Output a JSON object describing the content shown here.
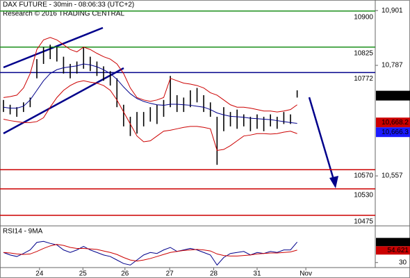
{
  "chart_data": {
    "type": "ohlc",
    "title": "DAX FUTURE - 30min - 08:06:33 (UTC+2)",
    "subtitle": "Research © 2016 TRADING CENTRAL",
    "xlim": [
      -0.52,
      55.7
    ],
    "xticks": [
      {
        "value": 5.4,
        "label": "24"
      },
      {
        "value": 11.9,
        "label": "25"
      },
      {
        "value": 18.2,
        "label": "26"
      },
      {
        "value": 24.9,
        "label": "27"
      },
      {
        "value": 31.5,
        "label": "28"
      },
      {
        "value": 38,
        "label": "31"
      },
      {
        "value": 45.3,
        "label": "Nov"
      }
    ],
    "ylim": [
      10453,
      10923
    ],
    "yticks": [
      {
        "value": 10901,
        "label": "10,901"
      },
      {
        "value": 10787,
        "label": "10,787"
      },
      {
        "value": 10557,
        "label": "10,557"
      }
    ],
    "bar_color": "#000000",
    "low": [
      10690,
      10685,
      10680,
      10690,
      10700,
      10760,
      10790,
      10800,
      10795,
      10770,
      10760,
      10770,
      10780,
      10775,
      10765,
      10755,
      10745,
      10700,
      10660,
      10640,
      10645,
      10660,
      10670,
      10665,
      10680,
      10700,
      10690,
      10690,
      10700,
      10710,
      10690,
      10680,
      10580,
      10650,
      10660,
      10655,
      10660,
      10650,
      10655,
      10650,
      10660,
      10655,
      10665,
      10665,
      10720
    ],
    "high": [
      10715,
      10705,
      10700,
      10710,
      10720,
      10800,
      10825,
      10830,
      10825,
      10805,
      10790,
      10795,
      10825,
      10805,
      10795,
      10785,
      10775,
      10760,
      10705,
      10680,
      10690,
      10690,
      10700,
      10705,
      10715,
      10765,
      10725,
      10720,
      10735,
      10740,
      10725,
      10710,
      10680,
      10700,
      10690,
      10695,
      10685,
      10680,
      10685,
      10680,
      10685,
      10680,
      10690,
      10685,
      10735
    ],
    "series": [
      {
        "name": "upper",
        "color": "#cc0000",
        "values": [
          10720,
          10722,
          10725,
          10740,
          10770,
          10820,
          10840,
          10845,
          10840,
          10830,
          10820,
          10815,
          10825,
          10820,
          10812,
          10805,
          10800,
          10790,
          10770,
          10740,
          10720,
          10715,
          10712,
          10715,
          10720,
          10760,
          10755,
          10750,
          10748,
          10745,
          10740,
          10730,
          10725,
          10715,
          10705,
          10700,
          10700,
          10698,
          10695,
          10692,
          10692,
          10690,
          10692,
          10695,
          10705
        ]
      },
      {
        "name": "ma",
        "color": "#00008b",
        "values": [
          10700,
          10698,
          10698,
          10702,
          10715,
          10735,
          10755,
          10770,
          10778,
          10782,
          10784,
          10786,
          10790,
          10788,
          10784,
          10778,
          10770,
          10758,
          10742,
          10728,
          10718,
          10712,
          10708,
          10705,
          10704,
          10706,
          10706,
          10705,
          10704,
          10702,
          10700,
          10695,
          10688,
          10684,
          10681,
          10680,
          10679,
          10677,
          10676,
          10675,
          10674,
          10672,
          10670,
          10668,
          10666.3
        ]
      },
      {
        "name": "lower",
        "color": "#cc0000",
        "values": [
          10675,
          10672,
          10670,
          10668,
          10668,
          10670,
          10678,
          10700,
          10720,
          10735,
          10745,
          10752,
          10755,
          10752,
          10750,
          10745,
          10735,
          10715,
          10690,
          10665,
          10640,
          10628,
          10630,
          10640,
          10650,
          10652,
          10655,
          10658,
          10660,
          10660,
          10658,
          10655,
          10610,
          10612,
          10620,
          10630,
          10640,
          10642,
          10645,
          10645,
          10644,
          10645,
          10648,
          10650,
          10645
        ]
      }
    ],
    "levels": [
      {
        "value": 10900,
        "color": "#1a8f1a"
      },
      {
        "value": 10825,
        "color": "#1a8f1a"
      },
      {
        "value": 10772,
        "color": "#00008b"
      },
      {
        "value": 10570,
        "color": "#cc0000"
      },
      {
        "value": 10530,
        "color": "#cc0000"
      },
      {
        "value": 10475,
        "color": "#cc0000"
      }
    ],
    "markers": [
      {
        "value": 10724,
        "label": "10,724",
        "color": "#000000"
      },
      {
        "value": 10668.2,
        "label": "10,668.2",
        "color": "#cc0000"
      },
      {
        "value": 10666.3,
        "label": "10,666.3",
        "color": "#1a1aff"
      }
    ],
    "rsi": {
      "title": "RSI14 - 9MA",
      "ylim": [
        20,
        100
      ],
      "yticks": [
        30
      ],
      "series": [
        {
          "name": "rsi",
          "color": "#00008b",
          "values": [
            50,
            45,
            42,
            48,
            55,
            70,
            72,
            68,
            65,
            55,
            50,
            55,
            62,
            55,
            50,
            45,
            42,
            35,
            28,
            25,
            35,
            45,
            50,
            48,
            55,
            60,
            52,
            55,
            58,
            55,
            50,
            45,
            25,
            40,
            48,
            50,
            52,
            45,
            50,
            48,
            52,
            50,
            55,
            55,
            70.6081
          ]
        },
        {
          "name": "ma",
          "color": "#cc0000",
          "values": [
            50,
            49,
            47,
            46,
            47,
            52,
            58,
            63,
            66,
            64,
            60,
            58,
            58,
            57,
            56,
            53,
            50,
            46,
            40,
            35,
            33,
            35,
            38,
            42,
            46,
            50,
            52,
            54,
            55,
            56,
            55,
            53,
            47,
            44,
            43,
            43,
            44,
            45,
            47,
            48,
            49,
            49,
            50,
            51,
            54.621
          ]
        }
      ],
      "markers": [
        {
          "value": 70.6081,
          "color": "#000000"
        },
        {
          "value": 54.621,
          "color": "#cc0000"
        }
      ]
    }
  }
}
